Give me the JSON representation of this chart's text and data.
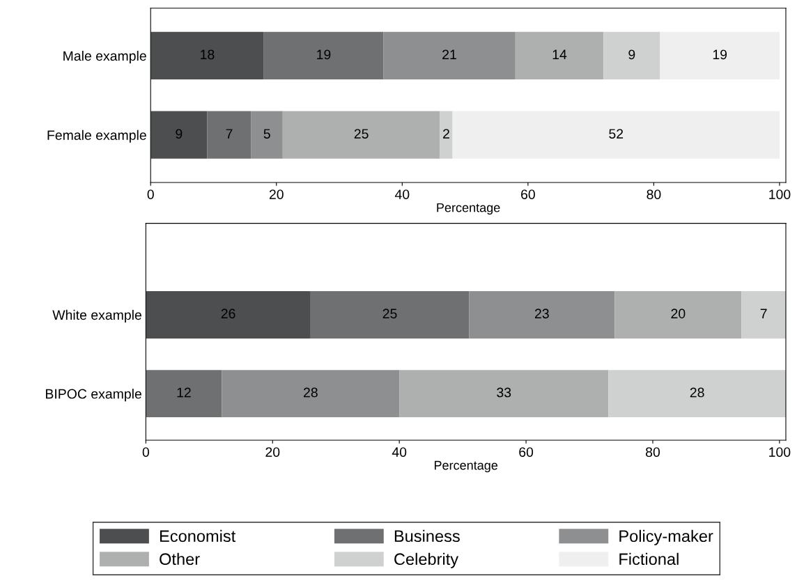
{
  "chart_data": [
    {
      "type": "bar",
      "orientation": "horizontal",
      "stacked": true,
      "categories": [
        "Male example",
        "Female example"
      ],
      "xlabel": "Percentage",
      "xlim": [
        0,
        101
      ],
      "xticks": [
        0,
        20,
        40,
        60,
        80,
        100
      ],
      "data_labels": true,
      "grid": false,
      "legend": "bottom",
      "series": [
        {
          "name": "Economist",
          "color": "#4d4e50",
          "values": [
            18,
            9
          ]
        },
        {
          "name": "Business",
          "color": "#6f7072",
          "values": [
            19,
            7
          ]
        },
        {
          "name": "Policy-maker",
          "color": "#8e8f90",
          "values": [
            21,
            5
          ]
        },
        {
          "name": "Other",
          "color": "#aeafaf",
          "values": [
            14,
            25
          ]
        },
        {
          "name": "Celebrity",
          "color": "#cfd0d0",
          "values": [
            9,
            2
          ]
        },
        {
          "name": "Fictional",
          "color": "#efeff0",
          "values": [
            19,
            52
          ]
        }
      ]
    },
    {
      "type": "bar",
      "orientation": "horizontal",
      "stacked": true,
      "categories": [
        "White example",
        "BIPOC example"
      ],
      "xlabel": "Percentage",
      "xlim": [
        0,
        101
      ],
      "xticks": [
        0,
        20,
        40,
        60,
        80,
        100
      ],
      "data_labels": true,
      "grid": false,
      "series": [
        {
          "color": "#4d4e50",
          "values": [
            26,
            null
          ]
        },
        {
          "color": "#6f7072",
          "values": [
            25,
            12
          ]
        },
        {
          "color": "#8e8f90",
          "values": [
            23,
            28
          ]
        },
        {
          "color": "#aeafaf",
          "values": [
            20,
            33
          ]
        },
        {
          "color": "#cfd0d0",
          "values": [
            7,
            28
          ]
        }
      ]
    }
  ]
}
